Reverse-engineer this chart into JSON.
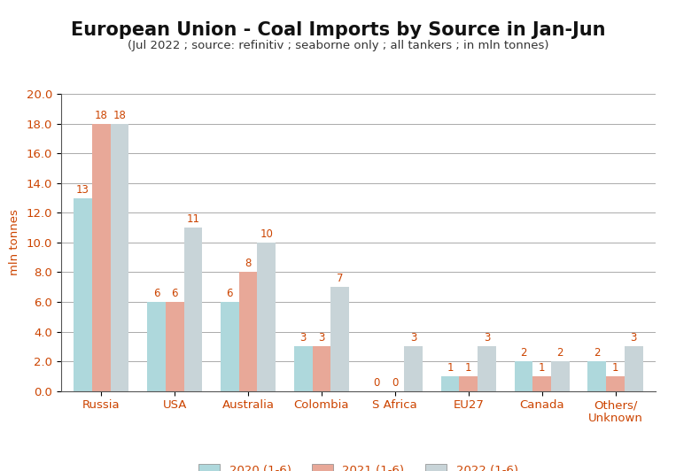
{
  "title": "European Union - Coal Imports by Source in Jan-Jun",
  "subtitle": "(Jul 2022 ; source: refinitiv ; seaborne only ; all tankers ; in mln tonnes)",
  "ylabel": "mln tonnes",
  "categories": [
    "Russia",
    "USA",
    "Australia",
    "Colombia",
    "S Africa",
    "EU27",
    "Canada",
    "Others/\nUnknown"
  ],
  "series": {
    "2020 (1-6)": [
      13,
      6,
      6,
      3,
      0,
      1,
      2,
      2
    ],
    "2021 (1-6)": [
      18,
      6,
      8,
      3,
      0,
      1,
      1,
      1
    ],
    "2022 (1-6)": [
      18,
      11,
      10,
      7,
      3,
      3,
      2,
      3
    ]
  },
  "colors": {
    "2020 (1-6)": "#aed8dc",
    "2021 (1-6)": "#e8a898",
    "2022 (1-6)": "#c8d4d8"
  },
  "ylim": [
    0,
    20.0
  ],
  "yticks": [
    0.0,
    2.0,
    4.0,
    6.0,
    8.0,
    10.0,
    12.0,
    14.0,
    16.0,
    18.0,
    20.0
  ],
  "background_color": "#ffffff",
  "title_fontsize": 15,
  "subtitle_fontsize": 9.5,
  "bar_label_fontsize": 8.5,
  "legend_fontsize": 9.5,
  "tick_label_color": "#cc4400",
  "bar_label_color": "#cc4400"
}
